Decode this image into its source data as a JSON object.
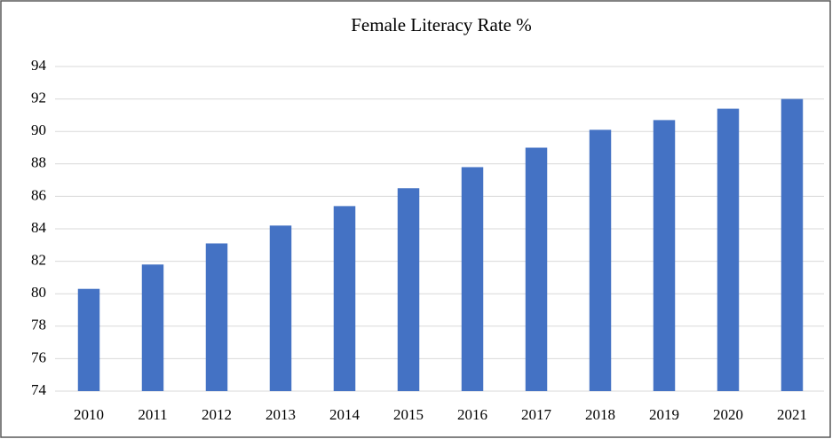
{
  "chart_data": {
    "type": "bar",
    "title": "Female Literacy Rate %",
    "categories": [
      "2010",
      "2011",
      "2012",
      "2013",
      "2014",
      "2015",
      "2016",
      "2017",
      "2018",
      "2019",
      "2020",
      "2021"
    ],
    "values": [
      80.3,
      81.8,
      83.1,
      84.2,
      85.4,
      86.5,
      87.8,
      89.0,
      90.1,
      90.7,
      91.4,
      92.0
    ],
    "color": "#4472c4",
    "ylim": [
      74,
      94
    ],
    "yticks": [
      74,
      76,
      78,
      80,
      82,
      84,
      86,
      88,
      90,
      92,
      94
    ],
    "grid": true
  }
}
